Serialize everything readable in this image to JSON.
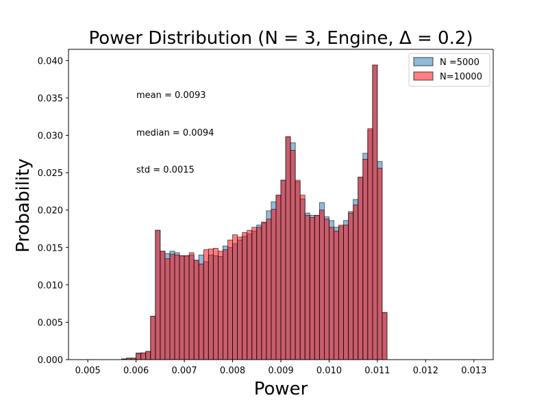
{
  "chart_data": {
    "type": "bar",
    "title": "Power Distribution (N = 3, Engine, Δ = 0.2)",
    "xlabel": "Power",
    "ylabel": "Probability",
    "xlim": [
      0.0046,
      0.0134
    ],
    "ylim": [
      0,
      0.0415
    ],
    "xticks": [
      "0.005",
      "0.006",
      "0.007",
      "0.008",
      "0.009",
      "0.010",
      "0.011",
      "0.012",
      "0.013"
    ],
    "yticks": [
      "0.000",
      "0.005",
      "0.010",
      "0.015",
      "0.020",
      "0.025",
      "0.030",
      "0.035",
      "0.040"
    ],
    "grid": false,
    "legend_position": "top-right",
    "bin_start": 0.0057,
    "bin_width": 0.0001,
    "series": [
      {
        "name": "N =5000",
        "color": "#1f77b4",
        "opacity": 0.5,
        "values": [
          0.0001,
          0.0002,
          0.0002,
          0.0009,
          0.0009,
          0.0011,
          0.0058,
          0.0173,
          0.0145,
          0.0142,
          0.0145,
          0.0143,
          0.0139,
          0.0139,
          0.014,
          0.0133,
          0.014,
          0.0131,
          0.014,
          0.0139,
          0.0138,
          0.0152,
          0.015,
          0.0155,
          0.016,
          0.0165,
          0.0168,
          0.0172,
          0.018,
          0.0183,
          0.0199,
          0.0211,
          0.022,
          0.024,
          0.0298,
          0.029,
          0.0238,
          0.0215,
          0.0196,
          0.0193,
          0.0193,
          0.021,
          0.0191,
          0.0186,
          0.0177,
          0.0178,
          0.0186,
          0.0198,
          0.0214,
          0.0244,
          0.0276,
          0.0307,
          0.0394,
          0.0265,
          0.0063
        ]
      },
      {
        "name": "N=10000",
        "color": "#ff0000",
        "opacity": 0.5,
        "values": [
          0.0001,
          0.0002,
          0.0002,
          0.0008,
          0.0009,
          0.0011,
          0.0058,
          0.0173,
          0.0145,
          0.0135,
          0.0141,
          0.014,
          0.0139,
          0.0139,
          0.0143,
          0.0133,
          0.0128,
          0.0147,
          0.0148,
          0.0149,
          0.0145,
          0.0147,
          0.016,
          0.0167,
          0.0164,
          0.017,
          0.0173,
          0.0177,
          0.0177,
          0.0184,
          0.0188,
          0.0201,
          0.022,
          0.024,
          0.0298,
          0.028,
          0.024,
          0.022,
          0.0193,
          0.019,
          0.0193,
          0.02,
          0.0188,
          0.0177,
          0.0172,
          0.018,
          0.018,
          0.0196,
          0.0207,
          0.0244,
          0.0268,
          0.0309,
          0.0394,
          0.0256,
          0.0063
        ]
      }
    ],
    "annotations": [
      "mean = 0.0093",
      "median = 0.0094",
      "std = 0.0015"
    ]
  }
}
